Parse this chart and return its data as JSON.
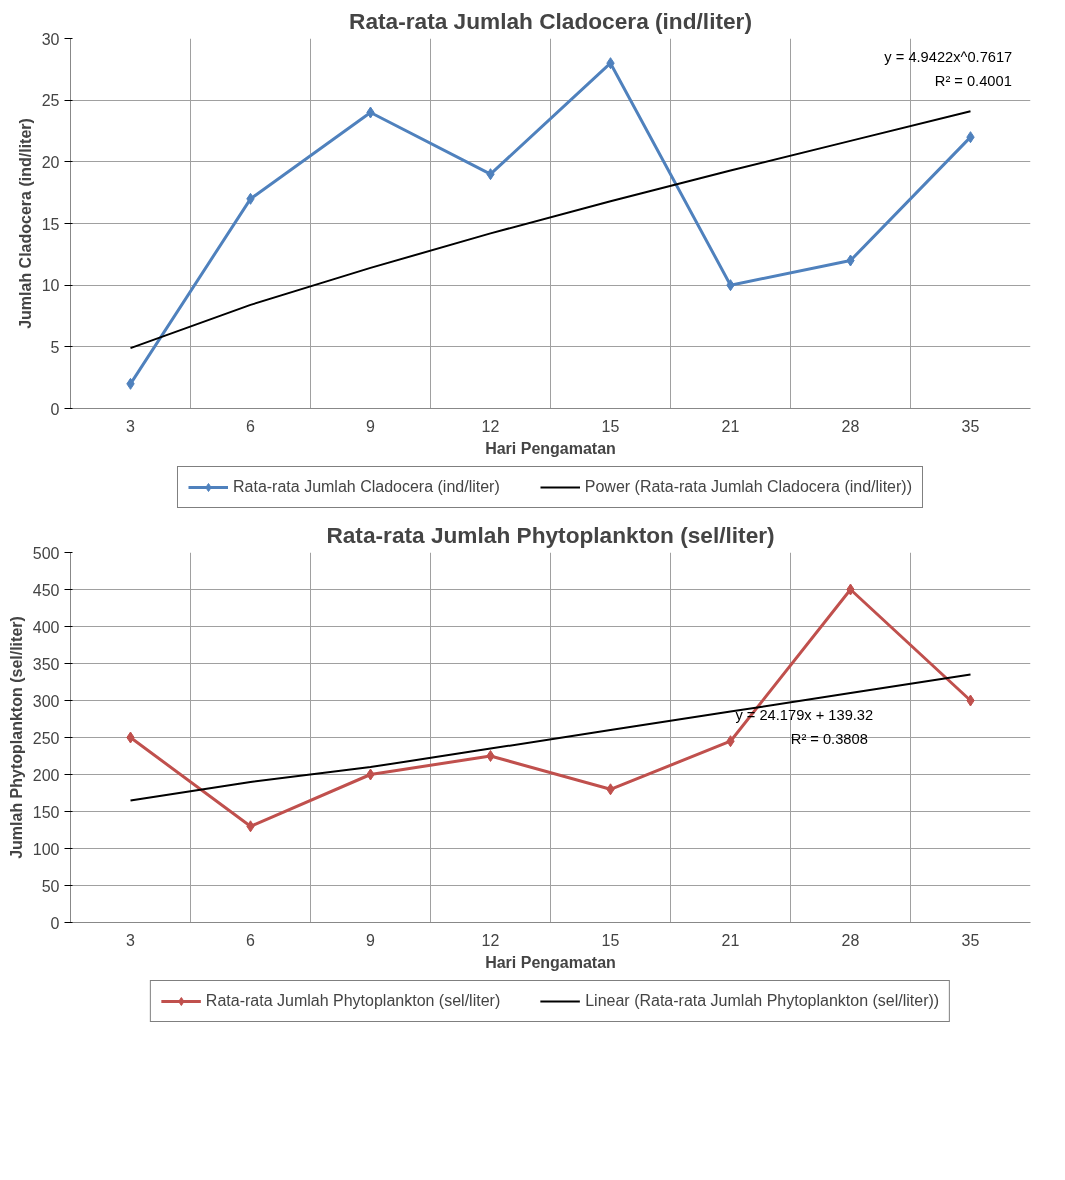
{
  "chart_data": [
    {
      "type": "line",
      "title": "Rata-rata Jumlah Cladocera (ind/liter)",
      "xlabel": "Hari Pengamatan",
      "ylabel": "Jumlah Cladocera (ind/liter)",
      "categories": [
        "3",
        "6",
        "9",
        "12",
        "15",
        "21",
        "28",
        "35"
      ],
      "series": [
        {
          "name": "Rata-rata Jumlah Cladocera (ind/liter)",
          "color": "#4f81bd",
          "marker": "diamond",
          "values": [
            2,
            17,
            24,
            19,
            28,
            10,
            12,
            22
          ]
        },
        {
          "name": "Power (Rata-rata Jumlah Cladocera (ind/liter))",
          "color": "#000000",
          "marker": "none",
          "values": [
            4.9,
            8.4,
            11.4,
            14.2,
            16.8,
            19.3,
            21.7,
            24.1
          ]
        }
      ],
      "ylim": [
        0,
        30
      ],
      "yticks": [
        0,
        5,
        10,
        15,
        20,
        25,
        30
      ],
      "grid": true,
      "legend": "bottom",
      "annotations": [
        "y = 4.9422x^0.7617",
        "R² = 0.4001"
      ]
    },
    {
      "type": "line",
      "title": "Rata-rata Jumlah Phytoplankton (sel/liter)",
      "xlabel": "Hari Pengamatan",
      "ylabel": "Jumlah Phytoplankton (sel/liter)",
      "categories": [
        "3",
        "6",
        "9",
        "12",
        "15",
        "21",
        "28",
        "35"
      ],
      "series": [
        {
          "name": "Rata-rata Jumlah Phytoplankton (sel/liter)",
          "color": "#c0504d",
          "marker": "diamond",
          "values": [
            250,
            130,
            200,
            225,
            180,
            245,
            450,
            300
          ]
        },
        {
          "name": "Linear (Rata-rata Jumlah Phytoplankton (sel/liter))",
          "color": "#000000",
          "marker": "none",
          "values": [
            165,
            190,
            210,
            235,
            260,
            285,
            310,
            335
          ]
        }
      ],
      "ylim": [
        0,
        500
      ],
      "yticks": [
        0,
        50,
        100,
        150,
        200,
        250,
        300,
        350,
        400,
        450,
        500
      ],
      "grid": true,
      "legend": "bottom",
      "annotations": [
        "y = 24.179x + 139.32",
        "R² = 0.3808"
      ]
    }
  ]
}
